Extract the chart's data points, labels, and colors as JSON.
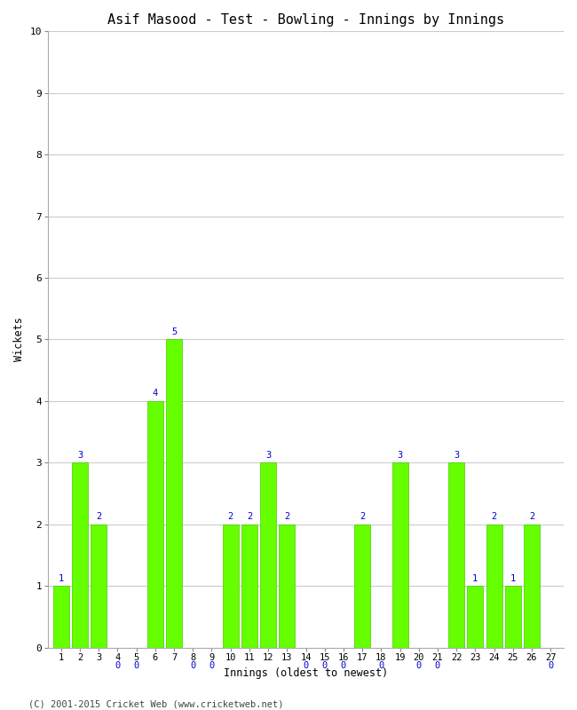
{
  "title": "Asif Masood - Test - Bowling - Innings by Innings",
  "xlabel": "Innings (oldest to newest)",
  "ylabel": "Wickets",
  "innings": [
    1,
    2,
    3,
    4,
    5,
    6,
    7,
    8,
    9,
    10,
    11,
    12,
    13,
    14,
    15,
    16,
    17,
    18,
    19,
    20,
    21,
    22,
    23,
    24,
    25,
    26,
    27
  ],
  "wickets": [
    1,
    3,
    2,
    0,
    0,
    4,
    5,
    0,
    0,
    2,
    2,
    3,
    2,
    0,
    0,
    0,
    2,
    0,
    3,
    0,
    0,
    3,
    1,
    2,
    1,
    2,
    0
  ],
  "bar_color": "#66ff00",
  "bar_edge_color": "#44cc00",
  "label_color": "#0000cc",
  "ylim": [
    0,
    10
  ],
  "yticks": [
    0,
    1,
    2,
    3,
    4,
    5,
    6,
    7,
    8,
    9,
    10
  ],
  "background_color": "#ffffff",
  "grid_color": "#cccccc",
  "footer": "(C) 2001-2015 Cricket Web (www.cricketweb.net)"
}
